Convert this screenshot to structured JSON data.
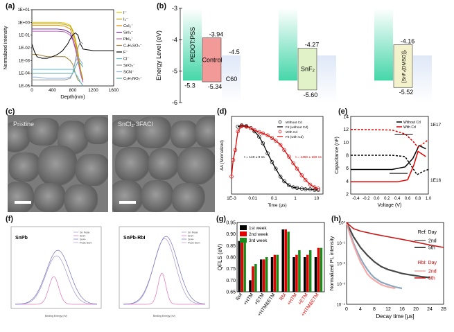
{
  "panels": [
    "(a)",
    "(b)",
    "(c)",
    "(d)",
    "(e)",
    "(f)",
    "(g)",
    "(h)"
  ],
  "chart_data": [
    {
      "id": "a",
      "type": "line",
      "xlabel": "Depth(nm)",
      "ylabel": "Normalized intensity",
      "xlim": [
        0,
        1600
      ],
      "yscale": "log",
      "ylim": [
        1e-05,
        10
      ],
      "xticks": [
        "0",
        "400",
        "800",
        "1200",
        "1600"
      ],
      "yticks": [
        "1E-05",
        "1E-04",
        "1E-03",
        "1E-02",
        "1E-01",
        "1E+00",
        "1E+01"
      ],
      "legend": [
        "I⁻",
        "I₂⁻",
        "CsI₂⁻",
        "SnI₃⁻",
        "PbI₃⁻",
        "C₄H₉SO₃⁻",
        "F⁻",
        "Cl⁻",
        "SnO₂⁻",
        "SCN⁻",
        "C₂H₃NO₂⁻"
      ],
      "colors": [
        "#e8c000",
        "#b0a000",
        "#e08a00",
        "#7030a0",
        "#c060c0",
        "#a08030",
        "#000000",
        "#60c0e0",
        "#909090",
        "#8ab0d8",
        "#5aa8a0"
      ],
      "series": [
        {
          "name": "I⁻",
          "x": [
            0,
            100,
            300,
            500,
            650,
            750,
            800,
            850,
            900,
            950,
            1000
          ],
          "y": [
            1.0,
            1.0,
            1.0,
            1.0,
            0.9,
            0.6,
            0.25,
            0.05,
            0.005,
            0.0002,
            3e-05
          ]
        },
        {
          "name": "I₂⁻",
          "x": [
            0,
            100,
            300,
            500,
            650,
            750,
            800,
            850,
            900,
            950,
            1000
          ],
          "y": [
            0.8,
            0.8,
            0.8,
            0.8,
            0.7,
            0.5,
            0.2,
            0.04,
            0.004,
            0.0002,
            3e-05
          ]
        },
        {
          "name": "CsI₂⁻",
          "x": [
            0,
            100,
            300,
            500,
            650,
            750,
            800,
            850,
            900,
            950,
            1000
          ],
          "y": [
            0.6,
            0.6,
            0.6,
            0.6,
            0.5,
            0.3,
            0.1,
            0.02,
            0.002,
            0.0001,
            2e-05
          ]
        },
        {
          "name": "SnI₃⁻",
          "x": [
            0,
            100,
            300,
            500,
            650,
            750,
            800,
            850,
            900,
            950,
            1000
          ],
          "y": [
            0.3,
            0.3,
            0.3,
            0.3,
            0.25,
            0.15,
            0.05,
            0.01,
            0.001,
            0.0001,
            2e-05
          ]
        },
        {
          "name": "PbI₃⁻",
          "x": [
            0,
            100,
            300,
            500,
            650,
            750,
            800,
            850,
            900,
            950,
            1000
          ],
          "y": [
            0.2,
            0.2,
            0.2,
            0.2,
            0.18,
            0.1,
            0.04,
            0.008,
            0.001,
            0.0001,
            2e-05
          ]
        },
        {
          "name": "C₄H₉SO₃⁻",
          "x": [
            0,
            100,
            300,
            500,
            650,
            750,
            800,
            850,
            900,
            950,
            1000
          ],
          "y": [
            0.003,
            0.003,
            0.002,
            0.002,
            0.002,
            0.001,
            0.0005,
            0.0001,
            3e-05,
            2e-05,
            1e-05
          ]
        },
        {
          "name": "F⁻",
          "x": [
            0,
            50,
            100,
            200,
            300,
            400,
            500,
            600,
            700,
            750,
            800,
            850,
            900,
            950,
            1000,
            1200,
            1600
          ],
          "y": [
            0.02,
            0.005,
            0.002,
            0.0015,
            0.0015,
            0.002,
            0.003,
            0.006,
            0.02,
            0.05,
            0.1,
            0.15,
            0.1,
            0.02,
            0.008,
            0.006,
            0.006
          ]
        },
        {
          "name": "Cl⁻",
          "x": [
            0,
            100,
            300,
            500,
            650,
            750,
            800,
            850,
            900,
            950,
            1000
          ],
          "y": [
            0.0002,
            0.0002,
            0.0002,
            0.0002,
            0.0002,
            0.0002,
            0.0002,
            0.0001,
            5e-05,
            2e-05,
            1e-05
          ]
        },
        {
          "name": "SnO₂⁻",
          "x": [
            0,
            100,
            300,
            500,
            650,
            750,
            800,
            850,
            900,
            950,
            1000
          ],
          "y": [
            3e-05,
            3e-05,
            3e-05,
            3e-05,
            3e-05,
            4e-05,
            0.0001,
            0.001,
            0.01,
            0.03,
            0.02
          ]
        },
        {
          "name": "SCN⁻",
          "x": [
            0,
            100,
            300,
            500,
            650,
            750,
            800,
            850,
            900,
            950,
            1000
          ],
          "y": [
            5e-05,
            5e-05,
            4e-05,
            4e-05,
            4e-05,
            5e-05,
            0.0001,
            0.0008,
            0.002,
            0.001,
            0.0005
          ]
        },
        {
          "name": "C₂H₃NO₂⁻",
          "x": [
            0,
            100,
            300,
            500,
            650,
            750,
            800,
            850,
            900,
            950,
            1000
          ],
          "y": [
            0.0001,
            0.0001,
            0.0001,
            0.0001,
            0.0001,
            0.0001,
            0.0001,
            0.0003,
            0.0008,
            0.0006,
            0.0003
          ]
        }
      ]
    },
    {
      "id": "b",
      "type": "diagram",
      "ylabel": "Energy Level (eV)",
      "ylim": [
        -6,
        -3
      ],
      "yticks": [
        "-3",
        "-4",
        "-5",
        "-6"
      ],
      "groups": [
        {
          "bars": [
            {
              "label": "PEDOT:PSS",
              "top": -3.0,
              "bottom": -5.3,
              "color": "#7fe0c0",
              "labels": [
                "",
                "-5.3"
              ]
            },
            {
              "label": "Control",
              "top": -3.94,
              "bottom": -5.34,
              "color": "#f29a98",
              "labels": [
                "-3.94",
                "-5.34"
              ]
            },
            {
              "label": "C60",
              "top": -4.5,
              "bottom": -6.0,
              "color": "#c8d8f0",
              "labels": [
                "-4.5",
                ""
              ]
            }
          ]
        },
        {
          "bars": [
            {
              "label": "",
              "top": -3.0,
              "bottom": -5.3,
              "color": "#7fe0c0",
              "labels": [
                "",
                ""
              ]
            },
            {
              "label": "SnF₂",
              "top": -4.27,
              "bottom": -5.6,
              "color": "#e2f2c8",
              "labels": [
                "-4.27",
                "-5.60"
              ]
            },
            {
              "label": "",
              "top": -4.5,
              "bottom": -6.0,
              "color": "#c8d8f0",
              "labels": [
                "",
                ""
              ]
            }
          ]
        },
        {
          "bars": [
            {
              "label": "",
              "top": -3.0,
              "bottom": -5.3,
              "color": "#7fe0c0",
              "labels": [
                "",
                ""
              ]
            },
            {
              "label": "[SnF₂(DMSO)]₂",
              "top": -4.16,
              "bottom": -5.52,
              "color": "#f4f2cc",
              "labels": [
                "-4.16",
                "-5.52"
              ]
            },
            {
              "label": "",
              "top": -4.5,
              "bottom": -6.0,
              "color": "#c8d8f0",
              "labels": [
                "",
                ""
              ]
            }
          ]
        }
      ]
    },
    {
      "id": "d",
      "type": "scatter",
      "xlabel": "Time (μs)",
      "ylabel": "ΔA (Normalized)",
      "xscale": "log",
      "xlim": [
        0.001,
        20
      ],
      "xticks": [
        "1E-3",
        "0.01",
        "0.1",
        "1",
        "10"
      ],
      "legend": [
        "Without Cd",
        "Fit (without Cd)",
        "With Cd",
        "Fit (with Cd)"
      ],
      "annotations": [
        "τ = 140 ± 9 ns",
        "τ = 1450 ± 160 ns"
      ],
      "series": [
        {
          "name": "Without Cd",
          "x": [
            0.002,
            0.003,
            0.005,
            0.008,
            0.012,
            0.02,
            0.03,
            0.05,
            0.08,
            0.12,
            0.2,
            0.3,
            0.5,
            0.8,
            1.2,
            2,
            3,
            5,
            8,
            12
          ],
          "y": [
            0.95,
            0.97,
            0.96,
            0.93,
            0.88,
            0.8,
            0.7,
            0.55,
            0.42,
            0.32,
            0.2,
            0.13,
            0.07,
            0.04,
            0.03,
            0.02,
            0.01,
            0.01,
            0.0,
            0.0
          ]
        },
        {
          "name": "With Cd",
          "x": [
            0.001,
            0.0012,
            0.0015,
            0.002,
            0.003,
            0.005,
            0.008,
            0.012,
            0.02,
            0.03,
            0.05,
            0.08,
            0.12,
            0.2,
            0.3,
            0.5,
            0.8,
            1.2,
            2,
            3,
            5,
            8,
            12
          ],
          "y": [
            0.2,
            0.45,
            0.6,
            0.88,
            0.96,
            0.95,
            0.93,
            0.9,
            0.87,
            0.85,
            0.82,
            0.78,
            0.74,
            0.68,
            0.6,
            0.5,
            0.4,
            0.32,
            0.22,
            0.15,
            0.08,
            0.04,
            0.02
          ]
        }
      ]
    },
    {
      "id": "e",
      "type": "line",
      "xlabel": "Voltage (V)",
      "ylabel": "Capacitance (nF)",
      "xlim": [
        -0.5,
        1.0
      ],
      "ylim": [
        2,
        14
      ],
      "xticks": [
        "-0.4",
        "-0.2",
        "0.0",
        "0.2",
        "0.4",
        "0.6",
        "0.8",
        "1.0"
      ],
      "yticks": [
        "2",
        "4",
        "6",
        "8",
        "10",
        "12",
        "14"
      ],
      "right_ticks": [
        "1E17",
        "1E16"
      ],
      "legend": [
        "Without Cd",
        "With Cd"
      ]
    },
    {
      "id": "f",
      "type": "line",
      "xlabel": "Binding Energy (eV)",
      "titles": [
        "SnPb",
        "SnPb-RbI"
      ],
      "legend": [
        "Sn Peak",
        "Sn2+",
        "Sn4+",
        "Peak Sum"
      ]
    },
    {
      "id": "g",
      "type": "bar",
      "ylabel": "QFLS (eV)",
      "ylim": [
        0.65,
        0.95
      ],
      "yticks": [
        "0.65",
        "0.70",
        "0.75",
        "0.80",
        "0.85",
        "0.90",
        "0.95"
      ],
      "categories": [
        "Ref",
        "+HTM",
        "+ETM",
        "+HTM&ETM",
        "RbI",
        "+HTM",
        "+ETM",
        "+HTM&ETM"
      ],
      "category_colors": [
        "#000000",
        "#000000",
        "#000000",
        "#000000",
        "#e00000",
        "#e00000",
        "#e00000",
        "#e00000"
      ],
      "series": [
        {
          "name": "1st week",
          "color": "#000000",
          "values": [
            0.87,
            0.7,
            0.79,
            0.8,
            0.92,
            0.8,
            0.8,
            0.8
          ]
        },
        {
          "name": "2nd week",
          "color": "#e00000",
          "values": [
            0.88,
            0.76,
            0.79,
            0.81,
            0.92,
            0.81,
            0.81,
            0.84
          ]
        },
        {
          "name": "3rd week",
          "color": "#1a8a1a",
          "values": [
            0.88,
            0.77,
            0.8,
            0.81,
            0.91,
            0.83,
            0.83,
            0.84
          ]
        }
      ],
      "legend": [
        "1st week",
        "2nd week",
        "3rd week"
      ]
    },
    {
      "id": "h",
      "type": "line",
      "xlabel": "Decay time [μs]",
      "ylabel": "Normalized PL intensity",
      "xlim": [
        0,
        28
      ],
      "yscale": "log",
      "ylim": [
        0.0001,
        1
      ],
      "xticks": [
        "0",
        "4",
        "8",
        "12",
        "16",
        "20",
        "24",
        "28"
      ],
      "yticks": [
        "10⁰",
        "10⁻¹",
        "10⁻²",
        "10⁻³",
        "10⁻⁴"
      ],
      "legend_groups": [
        {
          "title": "Ref: Day",
          "entries": [
            "2nd",
            "5th"
          ],
          "colors": [
            "#555555",
            "#000000"
          ]
        },
        {
          "title": "RbI: Day",
          "entries": [
            "2nd",
            "5th"
          ],
          "colors": [
            "#f0a0a0",
            "#d00000"
          ]
        }
      ],
      "series": [
        {
          "name": "Ref 2nd",
          "x": [
            0,
            1,
            2,
            3,
            4,
            5,
            6,
            7,
            8,
            10,
            12,
            14,
            16
          ],
          "y": [
            1,
            0.3,
            0.1,
            0.04,
            0.018,
            0.009,
            0.005,
            0.003,
            0.002,
            0.0012,
            0.0009,
            0.0007,
            0.0006
          ]
        },
        {
          "name": "Ref 5th",
          "x": [
            0,
            2,
            4,
            6,
            8,
            10,
            12,
            14,
            16,
            18,
            20,
            22,
            24
          ],
          "y": [
            1,
            0.2,
            0.06,
            0.025,
            0.012,
            0.007,
            0.005,
            0.004,
            0.0032,
            0.0028,
            0.0025,
            0.0022,
            0.002
          ]
        },
        {
          "name": "RbI 2nd",
          "x": [
            0,
            1,
            2,
            3,
            4,
            5,
            6,
            7,
            8,
            10,
            12,
            14
          ],
          "y": [
            1,
            0.25,
            0.08,
            0.03,
            0.012,
            0.006,
            0.003,
            0.002,
            0.0015,
            0.0009,
            0.0007,
            0.0006
          ]
        },
        {
          "name": "RbI 5th",
          "x": [
            0,
            2,
            4,
            8,
            12,
            16,
            20,
            24,
            28
          ],
          "y": [
            1,
            0.5,
            0.38,
            0.27,
            0.2,
            0.15,
            0.11,
            0.08,
            0.06
          ]
        }
      ]
    }
  ],
  "sem": {
    "left_tag": "Pristine",
    "right_tag": "SnCl₂·3FACl"
  }
}
